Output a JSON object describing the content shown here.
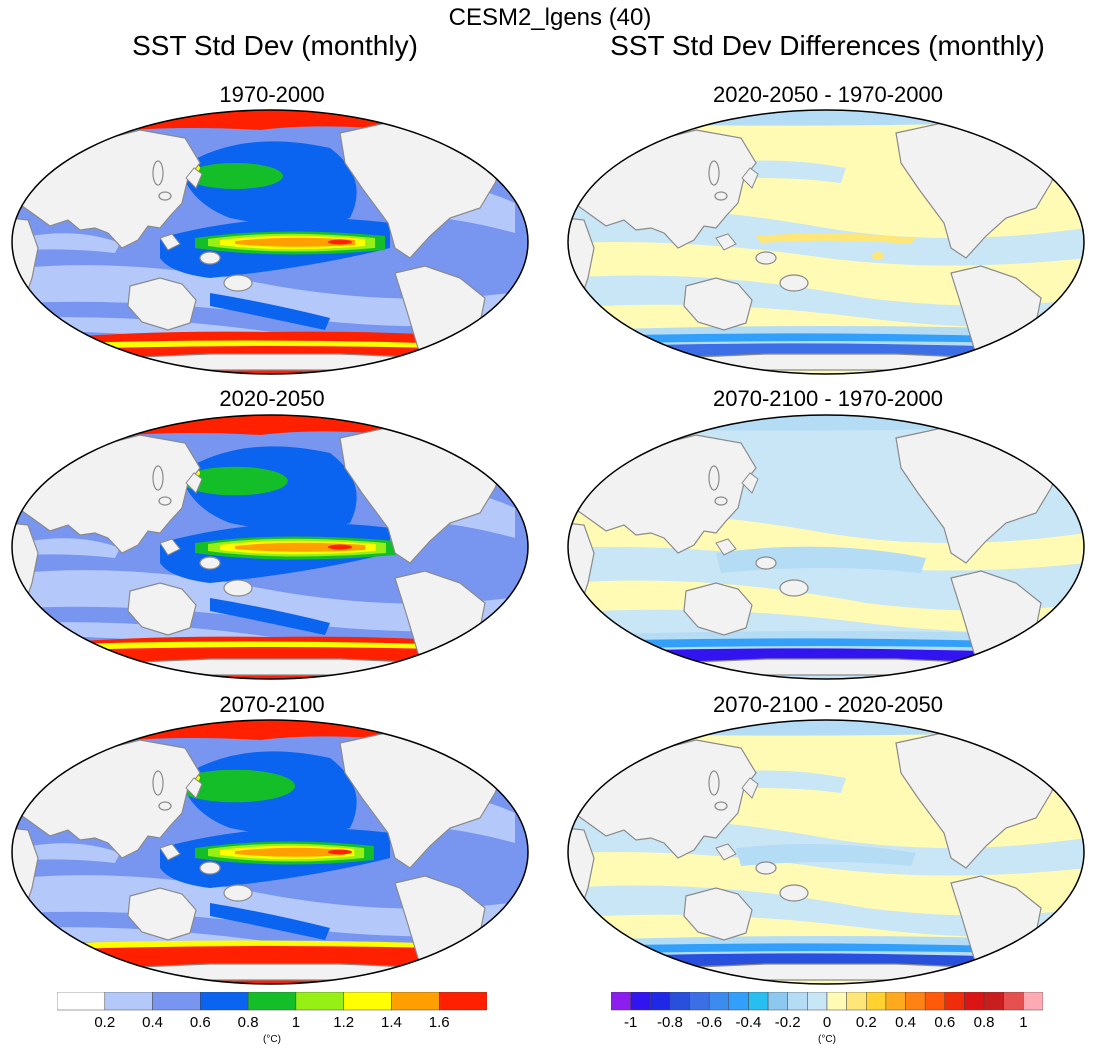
{
  "figure": {
    "suptitle": "CESM2_lgens (40)",
    "left_column_title": "SST Std Dev (monthly)",
    "right_column_title": "SST Std Dev Differences (monthly)"
  },
  "panels": [
    {
      "id": "p1",
      "title": "1970-2000",
      "kind": "abs",
      "variant": 0
    },
    {
      "id": "p2",
      "title": "2020-2050",
      "kind": "abs",
      "variant": 1
    },
    {
      "id": "p3",
      "title": "2070-2100",
      "kind": "abs",
      "variant": 2
    },
    {
      "id": "p4",
      "title": "2020-2050 - 1970-2000",
      "kind": "diff",
      "variant": 0
    },
    {
      "id": "p5",
      "title": "2070-2100 - 1970-2000",
      "kind": "diff",
      "variant": 1
    },
    {
      "id": "p6",
      "title": "2070-2100 - 2020-2050",
      "kind": "diff",
      "variant": 2
    }
  ],
  "chart_data": [
    {
      "type": "heatmap",
      "title": "SST Std Dev (monthly)",
      "panels": [
        "1970-2000",
        "2020-2050",
        "2070-2100"
      ],
      "units": "(°C)",
      "colorbar": {
        "levels": [
          0.2,
          0.4,
          0.6,
          0.8,
          1,
          1.2,
          1.4,
          1.6
        ],
        "tick_labels": [
          "0.2",
          "0.4",
          "0.6",
          "0.8",
          "1",
          "1.2",
          "1.4",
          "1.6"
        ],
        "colors": [
          "#ffffff",
          "#b4c8fa",
          "#7896f0",
          "#0a64f0",
          "#14be28",
          "#96f014",
          "#ffff00",
          "#ffa000",
          "#ff2000"
        ]
      }
    },
    {
      "type": "heatmap",
      "title": "SST Std Dev Differences (monthly)",
      "panels": [
        "2020-2050 - 1970-2000",
        "2070-2100 - 1970-2000",
        "2070-2100 - 2020-2050"
      ],
      "units": "(°C)",
      "colorbar": {
        "levels": [
          -1,
          -0.9,
          -0.8,
          -0.7,
          -0.6,
          -0.5,
          -0.4,
          -0.3,
          -0.2,
          -0.1,
          0,
          0.1,
          0.2,
          0.3,
          0.4,
          0.5,
          0.6,
          0.7,
          0.8,
          0.9,
          1
        ],
        "tick_labels": [
          "-1",
          "-0.8",
          "-0.6",
          "-0.4",
          "-0.2",
          "0",
          "0.2",
          "0.4",
          "0.6",
          "0.8",
          "1"
        ],
        "colors": [
          "#8c1ef0",
          "#3214f0",
          "#1e28e6",
          "#2850dc",
          "#3c6ee6",
          "#3c8cf0",
          "#32a0fa",
          "#28bef0",
          "#8cc8f0",
          "#b4dcf5",
          "#c8e6f5",
          "#fffab4",
          "#ffe678",
          "#ffd232",
          "#ffaa1e",
          "#ff8214",
          "#ff5a0a",
          "#f02d0a",
          "#dc1414",
          "#c81e1e",
          "#e65050",
          "#ffaab4"
        ]
      }
    }
  ],
  "colors": {
    "land": "#f2f2f2",
    "coast": "#8a8a8a",
    "border": "#000000"
  }
}
